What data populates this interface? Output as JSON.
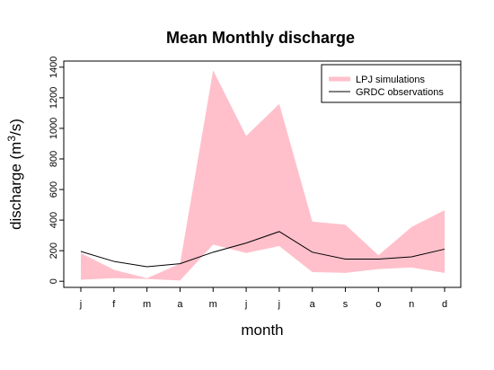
{
  "chart_data": {
    "type": "area",
    "title": "Mean Monthly discharge",
    "xlabel": "month",
    "ylabel_main": "discharge (m",
    "ylabel_sup": "3",
    "ylabel_end": "/s)",
    "categories": [
      "j",
      "f",
      "m",
      "a",
      "m",
      "j",
      "j",
      "a",
      "s",
      "o",
      "n",
      "d"
    ],
    "ylim": [
      -40,
      1440
    ],
    "yticks": [
      0,
      200,
      400,
      600,
      800,
      1000,
      1200,
      1400
    ],
    "legend_position": "top-right",
    "series": [
      {
        "name": "LPJ simulations",
        "kind": "band",
        "color": "#ffc0cb",
        "lower": [
          10,
          20,
          15,
          5,
          240,
          185,
          230,
          60,
          55,
          80,
          90,
          55
        ],
        "upper": [
          185,
          75,
          20,
          115,
          1380,
          950,
          1160,
          390,
          370,
          170,
          355,
          465
        ]
      },
      {
        "name": "GRDC observations",
        "kind": "line",
        "color": "#000000",
        "values": [
          195,
          130,
          95,
          115,
          190,
          250,
          325,
          190,
          145,
          145,
          160,
          210
        ]
      }
    ]
  }
}
